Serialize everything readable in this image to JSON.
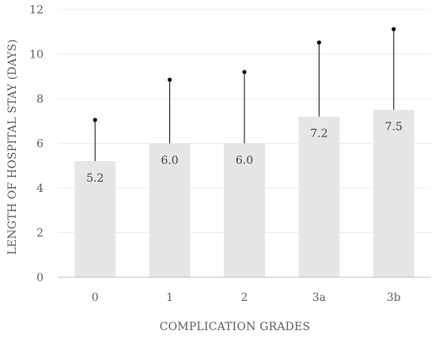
{
  "chart_data": {
    "type": "bar",
    "title": "",
    "xlabel": "COMPLICATION GRADES",
    "ylabel": "LENGTH OF HOSPITAL STAY (DAYS)",
    "categories": [
      "0",
      "1",
      "2",
      "3a",
      "3b"
    ],
    "values": [
      5.2,
      6.0,
      6.0,
      7.2,
      7.5
    ],
    "value_labels": [
      "5.2",
      "6.0",
      "6.0",
      "7.2",
      "7.5"
    ],
    "error_upper": [
      7.05,
      8.85,
      9.2,
      10.52,
      11.12
    ],
    "ylim": [
      0,
      12
    ],
    "yticks": [
      0,
      2,
      4,
      6,
      8,
      10,
      12
    ],
    "grid": true,
    "legend": "none",
    "colors": {
      "bar": "#e6e6e6",
      "error_bar": "#000000",
      "grid": "#ececec",
      "axis": "#bfbfbf",
      "text": "#595959"
    }
  }
}
